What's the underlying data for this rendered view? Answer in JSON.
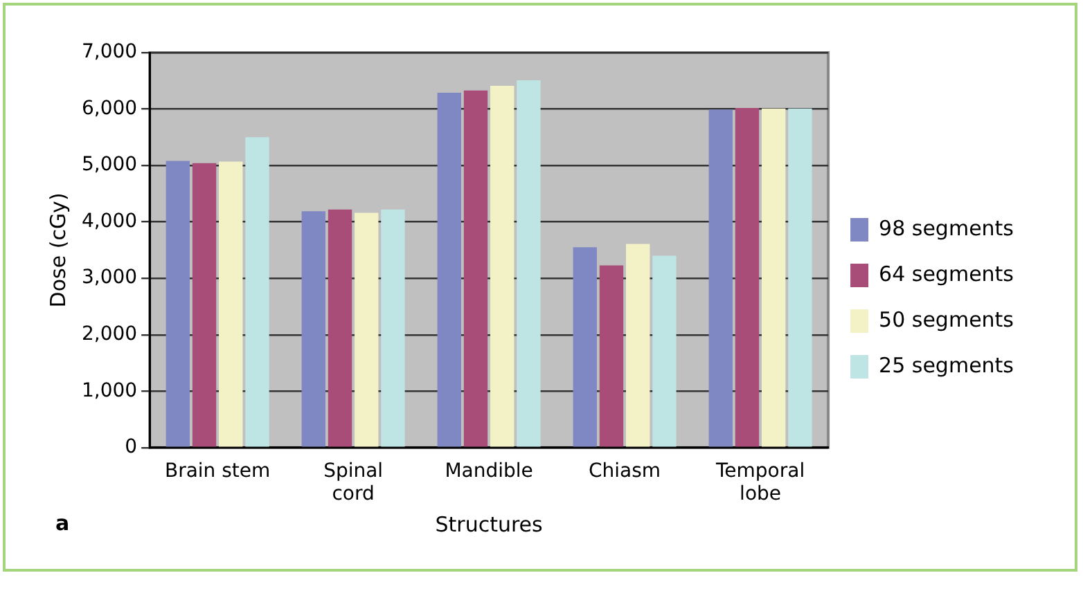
{
  "chart_data": {
    "type": "bar",
    "xlabel": "Structures",
    "ylabel": "Dose (cGy)",
    "annotations": [
      "a"
    ],
    "categories": [
      "Brain stem",
      "Spinal cord",
      "Mandible",
      "Chiasm",
      "Temporal lobe"
    ],
    "series": [
      {
        "name": "98 segments",
        "color": "#8088c4",
        "values": [
          5080,
          4190,
          6290,
          3550,
          5990
        ]
      },
      {
        "name": "64 segments",
        "color": "#a84c78",
        "values": [
          5040,
          4220,
          6330,
          3230,
          6020
        ]
      },
      {
        "name": "50 segments",
        "color": "#f2f2c6",
        "values": [
          5070,
          4160,
          6410,
          3610,
          6010
        ]
      },
      {
        "name": "25 segments",
        "color": "#bfe4e4",
        "values": [
          5500,
          4220,
          6510,
          3400,
          6010
        ]
      }
    ],
    "ylim": [
      0,
      7000
    ],
    "yticks": [
      {
        "value": 0,
        "label": "0"
      },
      {
        "value": 1000,
        "label": "1,000"
      },
      {
        "value": 2000,
        "label": "2,000"
      },
      {
        "value": 3000,
        "label": "3,000"
      },
      {
        "value": 4000,
        "label": "4,000"
      },
      {
        "value": 5000,
        "label": "5,000"
      },
      {
        "value": 6000,
        "label": "6,000"
      },
      {
        "value": 7000,
        "label": "7,000"
      }
    ],
    "grid": "y",
    "legend": "right"
  }
}
